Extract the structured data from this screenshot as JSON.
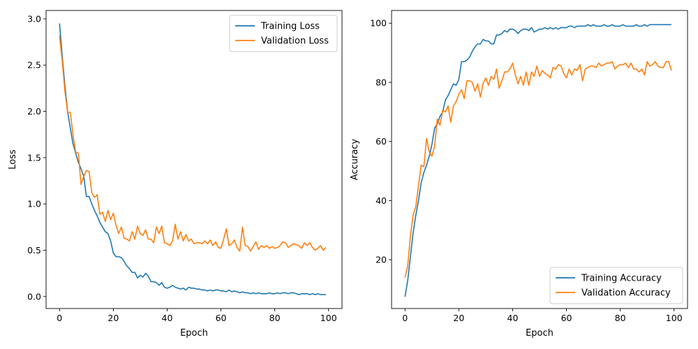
{
  "chart_data": [
    {
      "type": "line",
      "xlabel": "Epoch",
      "ylabel": "Loss",
      "xlim": [
        -5,
        105
      ],
      "ylim": [
        -0.13,
        3.09
      ],
      "xticks": [
        0,
        20,
        40,
        60,
        80,
        100
      ],
      "yticks": [
        0.0,
        0.5,
        1.0,
        1.5,
        2.0,
        2.5,
        3.0
      ],
      "ytick_labels": [
        "0.0",
        "0.5",
        "1.0",
        "1.5",
        "2.0",
        "2.5",
        "3.0"
      ],
      "legend_position": "top-right",
      "grid": false,
      "x": [
        0,
        1,
        2,
        3,
        4,
        5,
        6,
        7,
        8,
        9,
        10,
        11,
        12,
        13,
        14,
        15,
        16,
        17,
        18,
        19,
        20,
        21,
        22,
        23,
        24,
        25,
        26,
        27,
        28,
        29,
        30,
        31,
        32,
        33,
        34,
        35,
        36,
        37,
        38,
        39,
        40,
        41,
        42,
        43,
        44,
        45,
        46,
        47,
        48,
        49,
        50,
        51,
        52,
        53,
        54,
        55,
        56,
        57,
        58,
        59,
        60,
        61,
        62,
        63,
        64,
        65,
        66,
        67,
        68,
        69,
        70,
        71,
        72,
        73,
        74,
        75,
        76,
        77,
        78,
        79,
        80,
        81,
        82,
        83,
        84,
        85,
        86,
        87,
        88,
        89,
        90,
        91,
        92,
        93,
        94,
        95,
        96,
        97,
        98,
        99
      ],
      "series": [
        {
          "name": "Training Loss",
          "color": "#1f77b4",
          "values": [
            2.95,
            2.6,
            2.28,
            2.0,
            1.82,
            1.65,
            1.55,
            1.45,
            1.38,
            1.3,
            1.08,
            1.08,
            1.0,
            0.93,
            0.87,
            0.8,
            0.75,
            0.7,
            0.68,
            0.6,
            0.47,
            0.43,
            0.43,
            0.42,
            0.38,
            0.33,
            0.3,
            0.26,
            0.26,
            0.2,
            0.23,
            0.21,
            0.25,
            0.22,
            0.16,
            0.16,
            0.15,
            0.12,
            0.15,
            0.1,
            0.09,
            0.1,
            0.12,
            0.1,
            0.09,
            0.08,
            0.09,
            0.07,
            0.1,
            0.09,
            0.09,
            0.08,
            0.08,
            0.07,
            0.07,
            0.06,
            0.07,
            0.06,
            0.07,
            0.07,
            0.06,
            0.06,
            0.05,
            0.07,
            0.05,
            0.06,
            0.05,
            0.04,
            0.05,
            0.04,
            0.04,
            0.03,
            0.04,
            0.03,
            0.04,
            0.03,
            0.03,
            0.03,
            0.04,
            0.03,
            0.03,
            0.04,
            0.03,
            0.04,
            0.04,
            0.03,
            0.04,
            0.04,
            0.03,
            0.02,
            0.03,
            0.03,
            0.03,
            0.02,
            0.03,
            0.02,
            0.03,
            0.02,
            0.02,
            0.02
          ]
        },
        {
          "name": "Validation Loss",
          "color": "#ff7f0e",
          "values": [
            2.82,
            2.55,
            2.22,
            1.99,
            1.99,
            1.75,
            1.56,
            1.55,
            1.21,
            1.3,
            1.36,
            1.35,
            1.12,
            1.07,
            1.1,
            0.89,
            0.91,
            0.81,
            0.93,
            0.83,
            0.9,
            0.77,
            0.68,
            0.75,
            0.63,
            0.62,
            0.6,
            0.7,
            0.62,
            0.76,
            0.68,
            0.66,
            0.72,
            0.62,
            0.62,
            0.58,
            0.75,
            0.68,
            0.76,
            0.58,
            0.57,
            0.55,
            0.6,
            0.78,
            0.62,
            0.7,
            0.6,
            0.67,
            0.6,
            0.62,
            0.57,
            0.58,
            0.58,
            0.57,
            0.6,
            0.57,
            0.61,
            0.55,
            0.59,
            0.53,
            0.52,
            0.62,
            0.73,
            0.55,
            0.57,
            0.61,
            0.53,
            0.49,
            0.75,
            0.55,
            0.54,
            0.49,
            0.54,
            0.59,
            0.51,
            0.55,
            0.53,
            0.55,
            0.52,
            0.54,
            0.52,
            0.53,
            0.55,
            0.59,
            0.58,
            0.53,
            0.55,
            0.57,
            0.56,
            0.55,
            0.52,
            0.58,
            0.55,
            0.58,
            0.53,
            0.5,
            0.52,
            0.55,
            0.5,
            0.53
          ]
        }
      ]
    },
    {
      "type": "line",
      "xlabel": "Epoch",
      "ylabel": "Accuracy",
      "xlim": [
        -5,
        105
      ],
      "ylim": [
        3.5,
        104.3
      ],
      "xticks": [
        0,
        20,
        40,
        60,
        80,
        100
      ],
      "yticks": [
        20,
        40,
        60,
        80,
        100
      ],
      "ytick_labels": [
        "20",
        "40",
        "60",
        "80",
        "100"
      ],
      "legend_position": "bottom-right",
      "grid": false,
      "x": [
        0,
        1,
        2,
        3,
        4,
        5,
        6,
        7,
        8,
        9,
        10,
        11,
        12,
        13,
        14,
        15,
        16,
        17,
        18,
        19,
        20,
        21,
        22,
        23,
        24,
        25,
        26,
        27,
        28,
        29,
        30,
        31,
        32,
        33,
        34,
        35,
        36,
        37,
        38,
        39,
        40,
        41,
        42,
        43,
        44,
        45,
        46,
        47,
        48,
        49,
        50,
        51,
        52,
        53,
        54,
        55,
        56,
        57,
        58,
        59,
        60,
        61,
        62,
        63,
        64,
        65,
        66,
        67,
        68,
        69,
        70,
        71,
        72,
        73,
        74,
        75,
        76,
        77,
        78,
        79,
        80,
        81,
        82,
        83,
        84,
        85,
        86,
        87,
        88,
        89,
        90,
        91,
        92,
        93,
        94,
        95,
        96,
        97,
        98,
        99
      ],
      "series": [
        {
          "name": "Training Accuracy",
          "color": "#1f77b4",
          "values": [
            7.5,
            13.0,
            21.0,
            29.0,
            35.0,
            40.0,
            46.0,
            49.5,
            52.0,
            55.0,
            59.0,
            64.5,
            66.0,
            68.5,
            70.0,
            74.0,
            75.5,
            77.5,
            79.5,
            79.0,
            81.0,
            87.0,
            87.0,
            87.5,
            88.5,
            90.5,
            92.0,
            93.0,
            93.0,
            94.5,
            94.0,
            94.0,
            93.0,
            93.0,
            96.0,
            96.0,
            96.5,
            97.5,
            97.0,
            98.0,
            98.0,
            97.5,
            96.5,
            97.5,
            98.0,
            98.0,
            97.5,
            98.5,
            97.0,
            97.5,
            98.0,
            98.0,
            98.5,
            98.0,
            98.5,
            98.0,
            98.5,
            98.0,
            98.5,
            98.5,
            98.5,
            99.0,
            99.0,
            98.5,
            99.0,
            99.0,
            99.0,
            99.0,
            99.5,
            99.0,
            99.5,
            99.0,
            99.0,
            99.0,
            99.5,
            99.0,
            99.0,
            99.5,
            99.0,
            99.0,
            99.0,
            99.5,
            99.0,
            99.0,
            99.0,
            99.0,
            99.5,
            99.0,
            99.0,
            99.5,
            99.0,
            99.5,
            99.5,
            99.5,
            99.5,
            99.5,
            99.5,
            99.5,
            99.5,
            99.5
          ]
        },
        {
          "name": "Validation Accuracy",
          "color": "#ff7f0e",
          "values": [
            14.0,
            18.0,
            28.0,
            35.0,
            38.0,
            45.0,
            52.0,
            51.5,
            61.0,
            56.5,
            55.0,
            58.5,
            67.5,
            65.5,
            70.5,
            70.0,
            72.0,
            66.5,
            72.0,
            73.5,
            76.0,
            77.5,
            74.5,
            80.5,
            80.5,
            80.0,
            77.0,
            79.5,
            75.0,
            79.5,
            81.5,
            79.0,
            82.0,
            81.0,
            84.5,
            78.0,
            80.5,
            83.5,
            83.5,
            84.5,
            86.5,
            82.5,
            79.5,
            82.0,
            79.0,
            83.5,
            79.0,
            83.5,
            82.0,
            85.5,
            82.0,
            84.0,
            83.0,
            82.5,
            81.5,
            85.0,
            84.5,
            86.0,
            85.5,
            83.0,
            81.5,
            84.5,
            82.5,
            84.5,
            84.0,
            86.0,
            80.5,
            84.5,
            85.0,
            85.5,
            85.5,
            85.0,
            86.5,
            85.5,
            86.0,
            86.5,
            86.5,
            87.0,
            84.5,
            85.5,
            86.0,
            86.0,
            86.5,
            85.0,
            86.5,
            84.5,
            84.5,
            83.5,
            84.5,
            82.5,
            87.0,
            85.5,
            86.0,
            87.0,
            85.5,
            85.0,
            85.0,
            87.0,
            87.0,
            84.0
          ]
        }
      ]
    }
  ]
}
